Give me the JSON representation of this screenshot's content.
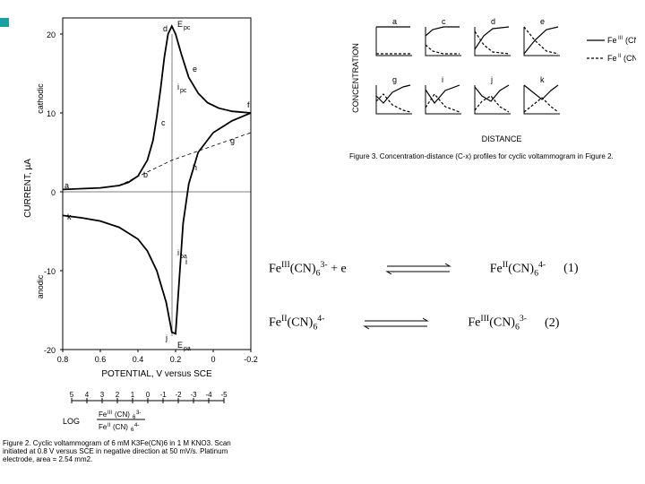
{
  "cv_plot": {
    "type": "line",
    "title": null,
    "xlabel": "POTENTIAL, V versus SCE",
    "ylabel": "CURRENT, µA",
    "ylabel_upper": "cathodic",
    "ylabel_lower": "anodic",
    "xlim": [
      -0.2,
      0.8
    ],
    "ylim": [
      -20,
      22
    ],
    "xticks": [
      0.8,
      0.6,
      0.4,
      0.2,
      0,
      -0.2
    ],
    "yticks": [
      -20,
      -10,
      0,
      10,
      20
    ],
    "label_fontsize": 9,
    "tick_fontsize": 8,
    "line_color": "#000000",
    "background_color": "#ffffff",
    "point_labels": [
      "a",
      "b",
      "c",
      "d",
      "e",
      "f",
      "g",
      "h",
      "i",
      "j",
      "k"
    ],
    "peak_labels": {
      "Epc": [
        0.22,
        21
      ],
      "Epa": [
        0.2,
        -18
      ],
      "ipc": [
        0.22,
        14
      ],
      "ipa": [
        0.22,
        -9
      ]
    },
    "forward_scan": [
      [
        0.8,
        0.3
      ],
      [
        0.7,
        0.4
      ],
      [
        0.6,
        0.5
      ],
      [
        0.5,
        0.8
      ],
      [
        0.45,
        1.2
      ],
      [
        0.4,
        2.0
      ],
      [
        0.35,
        4.0
      ],
      [
        0.32,
        6.5
      ],
      [
        0.3,
        9.5
      ],
      [
        0.28,
        13.0
      ],
      [
        0.26,
        17.0
      ],
      [
        0.24,
        20.0
      ],
      [
        0.22,
        21.0
      ],
      [
        0.2,
        20.0
      ],
      [
        0.17,
        17.5
      ],
      [
        0.13,
        14.5
      ],
      [
        0.08,
        12.5
      ],
      [
        0.03,
        11.3
      ],
      [
        -0.03,
        10.6
      ],
      [
        -0.1,
        10.2
      ],
      [
        -0.2,
        10.0
      ]
    ],
    "reverse_scan": [
      [
        -0.2,
        10.0
      ],
      [
        -0.1,
        9.0
      ],
      [
        0.0,
        7.5
      ],
      [
        0.08,
        5.0
      ],
      [
        0.13,
        1.0
      ],
      [
        0.16,
        -4.0
      ],
      [
        0.18,
        -11.0
      ],
      [
        0.2,
        -18.0
      ],
      [
        0.22,
        -17.8
      ],
      [
        0.25,
        -14.0
      ],
      [
        0.3,
        -10.0
      ],
      [
        0.35,
        -7.5
      ],
      [
        0.4,
        -6.0
      ],
      [
        0.5,
        -4.5
      ],
      [
        0.6,
        -3.7
      ],
      [
        0.7,
        -3.3
      ],
      [
        0.8,
        -3.0
      ]
    ],
    "baseline_dash": [
      [
        0.5,
        0.8
      ],
      [
        0.22,
        4.0
      ],
      [
        -0.2,
        7.5
      ]
    ]
  },
  "log_scale": {
    "ticks": [
      "5",
      "4",
      "3",
      "2",
      "1",
      "0",
      "-1",
      "-2",
      "-3",
      "-4",
      "-5"
    ],
    "numerator": "FeIII(CN)63-",
    "denominator": "FeII(CN)64-",
    "label": "LOG"
  },
  "caption2": {
    "prefix": "Figure 2.",
    "text": " Cyclic voltammogram of 6 mM K3Fe(CN)6 in 1 M KNO3. Scan initiated at 0.8 V versus SCE in negative direction at 50 mV/s. Platinum electrode, area = 2.54 mm2."
  },
  "profiles": {
    "ylabel": "CONCENTRATION",
    "xlabel": "DISTANCE",
    "legend_top": "FeIII(CN)63-",
    "legend_bot": "FeII(CN)64-",
    "panels": [
      "a",
      "c",
      "d",
      "e",
      "g",
      "i",
      "j",
      "k"
    ],
    "line_color": "#000000",
    "solid_style": "solid",
    "dash_style": "dashed"
  },
  "caption3": {
    "prefix": "Figure 3.",
    "text": " Concentration-distance (C-x) profiles for cyclic voltammogram in Figure 2."
  },
  "equations": {
    "eq1": {
      "lhs_pre": "Fe",
      "lhs_sup": "III",
      "lhs_mid": "(CN)",
      "lhs_sub": "6",
      "lhs_charge": "3-",
      "lhs_tail": " + e",
      "rhs_pre": "Fe",
      "rhs_sup": "II",
      "rhs_mid": "(CN)",
      "rhs_sub": "6",
      "rhs_charge": "4-",
      "num": "(1)"
    },
    "eq2": {
      "lhs_pre": "Fe",
      "lhs_sup": "II",
      "lhs_mid": "(CN)",
      "lhs_sub": "6",
      "lhs_charge": "4-",
      "lhs_tail": "",
      "rhs_pre": "Fe",
      "rhs_sup": "III",
      "rhs_mid": "(CN)",
      "rhs_sub": "6",
      "rhs_charge": "3-",
      "num": "(2)"
    }
  },
  "colors": {
    "text": "#000000",
    "bg": "#ffffff",
    "teal": "#1aa0a0"
  }
}
